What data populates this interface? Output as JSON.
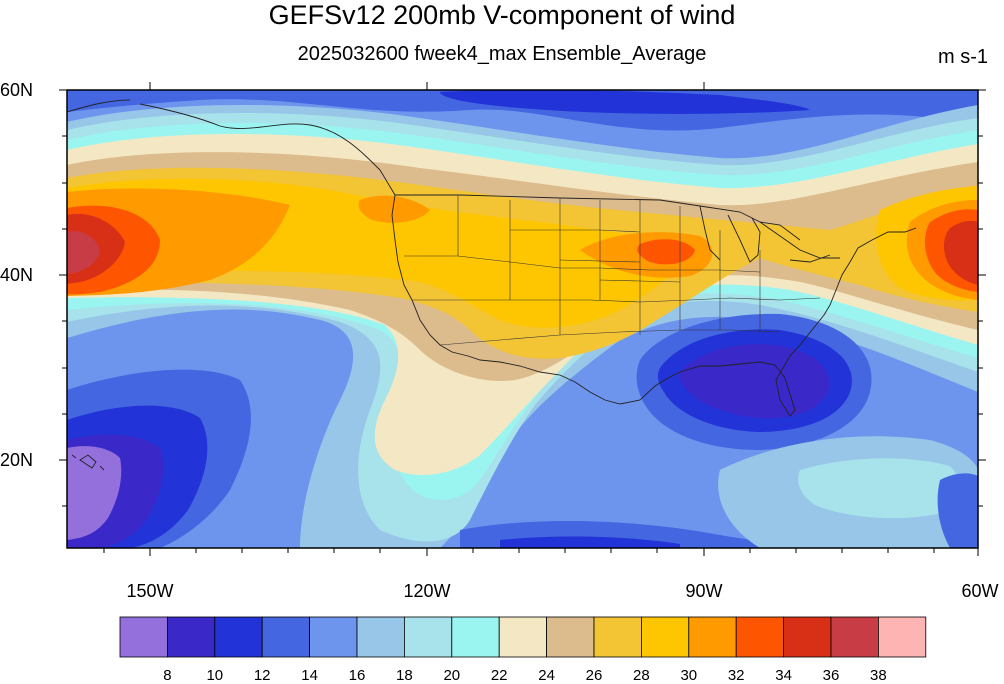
{
  "title": "GEFSv12 200mb V-component of wind",
  "subtitle": "2025032600 fweek4_max Ensemble_Average",
  "units": "m s-1",
  "lat_labels": [
    "60N",
    "40N",
    "20N"
  ],
  "lon_labels": [
    "150W",
    "120W",
    "90W",
    "60W"
  ],
  "colorbar": {
    "colors": [
      "#9370db",
      "#3a28c8",
      "#2233d8",
      "#4466e0",
      "#6e95ee",
      "#97c6e8",
      "#a8e2ea",
      "#9af5f0",
      "#f4e8c4",
      "#dcbb8c",
      "#f3c534",
      "#fec600",
      "#ff9a00",
      "#fe5500",
      "#d83016",
      "#c83c46",
      "#ffb4b4"
    ],
    "labels": [
      "8",
      "10",
      "12",
      "14",
      "16",
      "18",
      "20",
      "22",
      "24",
      "26",
      "28",
      "30",
      "32",
      "34",
      "36",
      "38"
    ]
  },
  "map": {
    "lat_range": [
      10,
      60
    ],
    "lon_range": [
      -160,
      -60
    ],
    "projection": "cylindrical equidistant",
    "field": "200mb V-component of wind, ensemble average"
  }
}
